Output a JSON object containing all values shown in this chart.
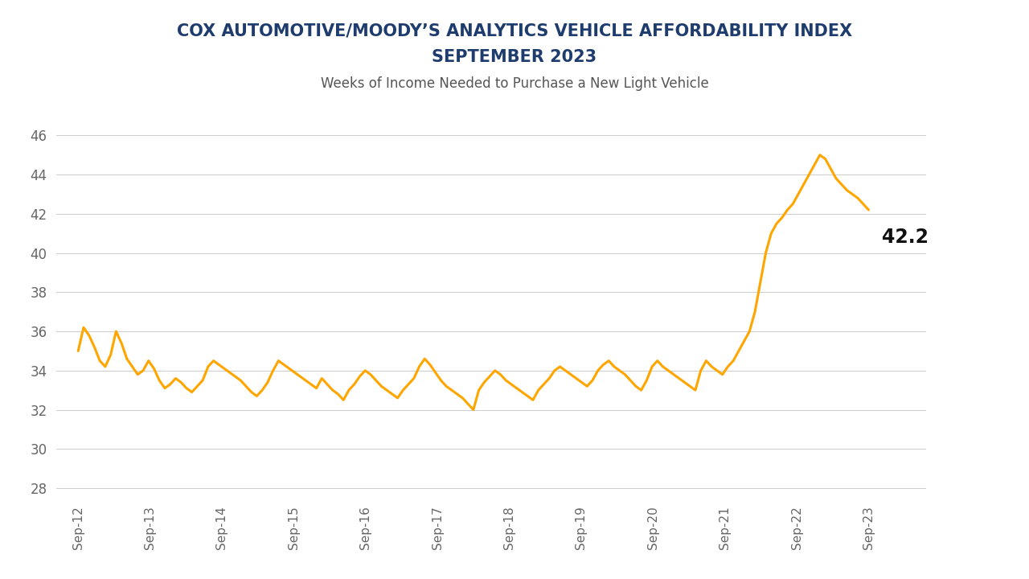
{
  "title_line1": "COX AUTOMOTIVE/MOODY’S ANALYTICS VEHICLE AFFORDABILITY INDEX",
  "title_line2": "SEPTEMBER 2023",
  "subtitle": "Weeks of Income Needed to Purchase a New Light Vehicle",
  "title_color": "#1f3c6e",
  "subtitle_color": "#555555",
  "line_color": "#FFA500",
  "last_value": "42.2",
  "last_value_color": "#111111",
  "ylim": [
    27.5,
    47.0
  ],
  "yticks": [
    28,
    30,
    32,
    34,
    36,
    38,
    40,
    42,
    44,
    46
  ],
  "grid_color": "#cccccc",
  "background_color": "#ffffff",
  "x_labels": [
    "Sep-12",
    "Sep-13",
    "Sep-14",
    "Sep-15",
    "Sep-16",
    "Sep-17",
    "Sep-18",
    "Sep-19",
    "Sep-20",
    "Sep-21",
    "Sep-22",
    "Sep-23"
  ],
  "data_y": [
    35.0,
    36.2,
    35.8,
    35.2,
    34.5,
    34.2,
    34.8,
    36.0,
    35.4,
    34.6,
    34.2,
    33.8,
    34.0,
    34.5,
    34.1,
    33.5,
    33.1,
    33.3,
    33.6,
    33.4,
    33.1,
    32.9,
    33.2,
    33.5,
    34.2,
    34.5,
    34.3,
    34.1,
    33.9,
    33.7,
    33.5,
    33.2,
    32.9,
    32.7,
    33.0,
    33.4,
    34.0,
    34.5,
    34.3,
    34.1,
    33.9,
    33.7,
    33.5,
    33.3,
    33.1,
    33.6,
    33.3,
    33.0,
    32.8,
    32.5,
    33.0,
    33.3,
    33.7,
    34.0,
    33.8,
    33.5,
    33.2,
    33.0,
    32.8,
    32.6,
    33.0,
    33.3,
    33.6,
    34.2,
    34.6,
    34.3,
    33.9,
    33.5,
    33.2,
    33.0,
    32.8,
    32.6,
    32.3,
    32.0,
    33.0,
    33.4,
    33.7,
    34.0,
    33.8,
    33.5,
    33.3,
    33.1,
    32.9,
    32.7,
    32.5,
    33.0,
    33.3,
    33.6,
    34.0,
    34.2,
    34.0,
    33.8,
    33.6,
    33.4,
    33.2,
    33.5,
    34.0,
    34.3,
    34.5,
    34.2,
    34.0,
    33.8,
    33.5,
    33.2,
    33.0,
    33.5,
    34.2,
    34.5,
    34.2,
    34.0,
    33.8,
    33.6,
    33.4,
    33.2,
    33.0,
    34.0,
    34.5,
    34.2,
    34.0,
    33.8,
    34.2,
    34.5,
    35.0,
    35.5,
    36.0,
    37.0,
    38.5,
    40.0,
    41.0,
    41.5,
    41.8,
    42.2,
    42.5,
    43.0,
    43.5,
    44.0,
    44.5,
    45.0,
    44.8,
    44.3,
    43.8,
    43.5,
    43.2,
    43.0,
    42.8,
    42.5,
    42.2
  ]
}
